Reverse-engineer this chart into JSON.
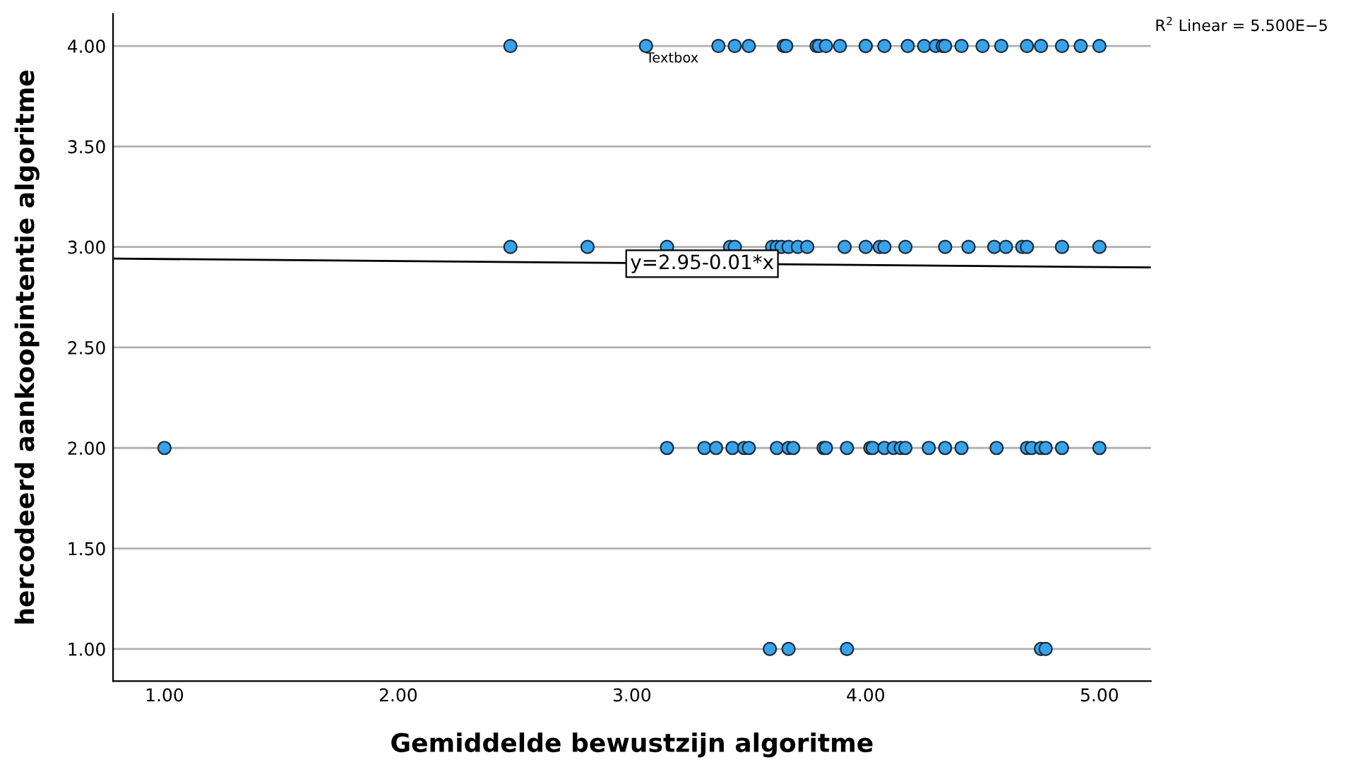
{
  "chart_data": {
    "type": "scatter",
    "xlabel": "Gemiddelde bewustzijn algoritme",
    "ylabel": "hercodeerd aankoopintentie algoritme",
    "xlim": [
      0.78,
      5.22
    ],
    "ylim": [
      0.84,
      4.16
    ],
    "xticks": [
      {
        "value": 1,
        "label": "1.00"
      },
      {
        "value": 2,
        "label": "2.00"
      },
      {
        "value": 3,
        "label": "3.00"
      },
      {
        "value": 4,
        "label": "4.00"
      },
      {
        "value": 5,
        "label": "5.00"
      }
    ],
    "yticks": [
      {
        "value": 1,
        "label": "1.00"
      },
      {
        "value": 1.5,
        "label": "1.50"
      },
      {
        "value": 2,
        "label": "2.00"
      },
      {
        "value": 2.5,
        "label": "2.50"
      },
      {
        "value": 3,
        "label": "3.00"
      },
      {
        "value": 3.5,
        "label": "3.50"
      },
      {
        "value": 4,
        "label": "4.00"
      }
    ],
    "grid": "y",
    "legend": false,
    "series": [
      {
        "color": "#36a3eb",
        "marker": "circle",
        "x": [
          2.48,
          3.06,
          3.37,
          3.44,
          3.5,
          3.65,
          3.66,
          3.79,
          3.8,
          3.83,
          3.89,
          4.0,
          4.0,
          4.08,
          4.18,
          4.25,
          4.3,
          4.33,
          4.34,
          4.41,
          4.5,
          4.58,
          4.69,
          4.75,
          4.84,
          4.92,
          5.0,
          2.48,
          2.81,
          3.15,
          3.42,
          3.44,
          3.6,
          3.62,
          3.64,
          3.67,
          3.71,
          3.75,
          3.91,
          4.0,
          4.06,
          4.08,
          4.17,
          4.34,
          4.44,
          4.55,
          4.6,
          4.67,
          4.69,
          4.84,
          5.0,
          1.0,
          3.15,
          3.31,
          3.36,
          3.43,
          3.48,
          3.5,
          3.62,
          3.67,
          3.69,
          3.82,
          3.83,
          3.92,
          4.02,
          4.03,
          4.08,
          4.12,
          4.15,
          4.17,
          4.27,
          4.34,
          4.41,
          4.56,
          4.69,
          4.71,
          4.75,
          4.77,
          4.84,
          5.0,
          3.59,
          3.67,
          3.92,
          4.75,
          4.77
        ],
        "values": [
          4,
          4,
          4,
          4,
          4,
          4,
          4,
          4,
          4,
          4,
          4,
          4,
          4,
          4,
          4,
          4,
          4,
          4,
          4,
          4,
          4,
          4,
          4,
          4,
          4,
          4,
          4,
          3,
          3,
          3,
          3,
          3,
          3,
          3,
          3,
          3,
          3,
          3,
          3,
          3,
          3,
          3,
          3,
          3,
          3,
          3,
          3,
          3,
          3,
          3,
          3,
          2,
          2,
          2,
          2,
          2,
          2,
          2,
          2,
          2,
          2,
          2,
          2,
          2,
          2,
          2,
          2,
          2,
          2,
          2,
          2,
          2,
          2,
          2,
          2,
          2,
          2,
          2,
          2,
          2,
          1,
          1,
          1,
          1,
          1
        ]
      },
      {
        "type": "line",
        "color": "#000000",
        "line_style": "solid",
        "x": [
          0.78,
          5.22
        ],
        "values": [
          2.942,
          2.898
        ]
      }
    ],
    "annotations": [
      {
        "text": "y=2.95-0.01*x",
        "x": 3.3,
        "y": 2.917
      },
      {
        "text": "Textbox",
        "x": 3.06,
        "y": 3.97
      },
      "R$^{2}$ Linear = 5.500E−5"
    ]
  }
}
